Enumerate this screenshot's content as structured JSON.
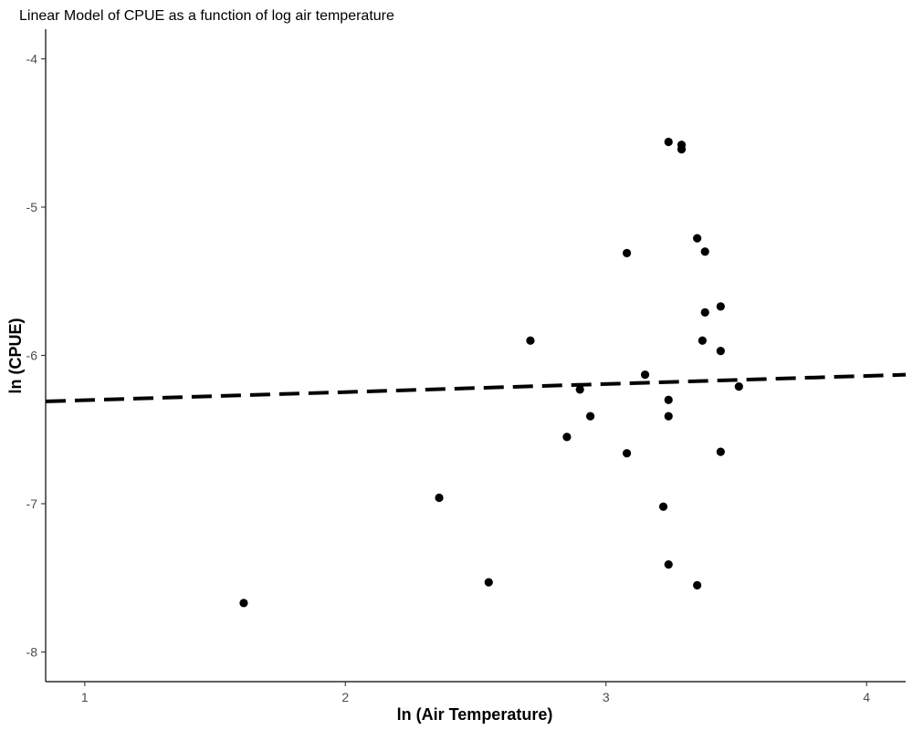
{
  "chart_data": {
    "type": "scatter",
    "title": "Linear Model of CPUE as a function of log air temperature",
    "xlabel": "ln (Air Temperature)",
    "ylabel": "ln (CPUE)",
    "xlim": [
      0.85,
      4.15
    ],
    "ylim": [
      -8.2,
      -3.8
    ],
    "xticks": [
      1,
      2,
      3,
      4
    ],
    "xtick_labels": [
      "1",
      "2",
      "3",
      "4"
    ],
    "yticks": [
      -8,
      -7,
      -6,
      -5,
      -4
    ],
    "ytick_labels": [
      "-8",
      "-7",
      "-6",
      "-5",
      "-4"
    ],
    "grid": false,
    "points": [
      {
        "x": 1.61,
        "y": -7.67
      },
      {
        "x": 2.36,
        "y": -6.96
      },
      {
        "x": 2.55,
        "y": -7.53
      },
      {
        "x": 2.71,
        "y": -5.9
      },
      {
        "x": 2.85,
        "y": -6.55
      },
      {
        "x": 2.9,
        "y": -6.23
      },
      {
        "x": 2.94,
        "y": -6.41
      },
      {
        "x": 3.08,
        "y": -5.31
      },
      {
        "x": 3.08,
        "y": -6.66
      },
      {
        "x": 3.15,
        "y": -6.13
      },
      {
        "x": 3.22,
        "y": -7.02
      },
      {
        "x": 3.24,
        "y": -4.56
      },
      {
        "x": 3.24,
        "y": -6.3
      },
      {
        "x": 3.24,
        "y": -6.41
      },
      {
        "x": 3.24,
        "y": -7.41
      },
      {
        "x": 3.29,
        "y": -4.58
      },
      {
        "x": 3.29,
        "y": -4.61
      },
      {
        "x": 3.35,
        "y": -5.21
      },
      {
        "x": 3.35,
        "y": -7.55
      },
      {
        "x": 3.37,
        "y": -5.9
      },
      {
        "x": 3.38,
        "y": -5.3
      },
      {
        "x": 3.38,
        "y": -5.71
      },
      {
        "x": 3.44,
        "y": -5.67
      },
      {
        "x": 3.44,
        "y": -5.97
      },
      {
        "x": 3.44,
        "y": -6.65
      },
      {
        "x": 3.51,
        "y": -6.21
      }
    ],
    "fit_line": {
      "x": [
        0.85,
        4.15
      ],
      "y": [
        -6.31,
        -6.13
      ]
    },
    "colors": {
      "points": "#000000",
      "fit_line": "#000000",
      "axis": "#000000",
      "tick_label": "#4d4d4d"
    }
  }
}
